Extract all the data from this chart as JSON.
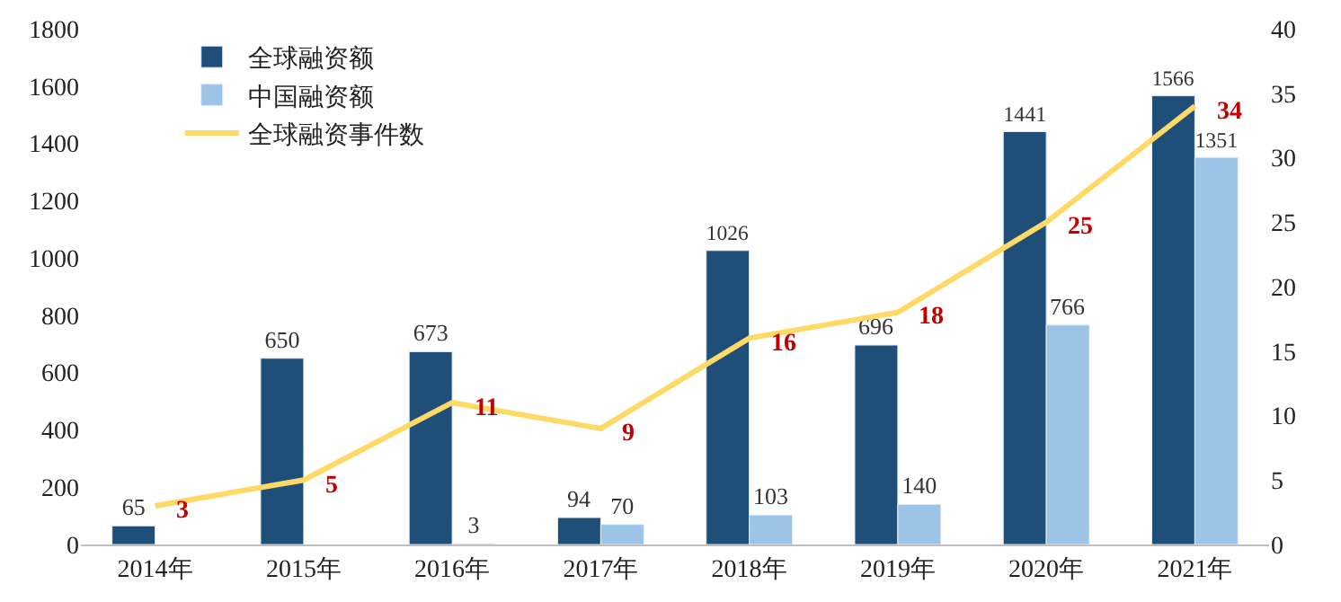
{
  "chart_data": {
    "type": "bar",
    "categories": [
      "2014年",
      "2015年",
      "2016年",
      "2017年",
      "2018年",
      "2019年",
      "2020年",
      "2021年"
    ],
    "series": [
      {
        "name": "全球融资额",
        "color": "#1f4e79",
        "values": [
          65,
          650,
          673,
          94,
          1026,
          696,
          1441,
          1566
        ]
      },
      {
        "name": "中国融资额",
        "color": "#9dc3e6",
        "values": [
          null,
          null,
          3,
          70,
          103,
          140,
          766,
          1351
        ]
      },
      {
        "name": "全球融资事件数",
        "type": "line",
        "axis": "y2",
        "color": "#ffd966",
        "marker": "none",
        "values": [
          3,
          5,
          11,
          9,
          16,
          18,
          25,
          34
        ]
      }
    ],
    "ylim": [
      0,
      1800
    ],
    "yticks": [
      0,
      200,
      400,
      600,
      800,
      1000,
      1200,
      1400,
      1600,
      1800
    ],
    "y2lim": [
      0,
      40
    ],
    "y2ticks": [
      0,
      5,
      10,
      15,
      20,
      25,
      30,
      35,
      40
    ],
    "data_labels": true,
    "grid": false,
    "legend": "top left"
  }
}
